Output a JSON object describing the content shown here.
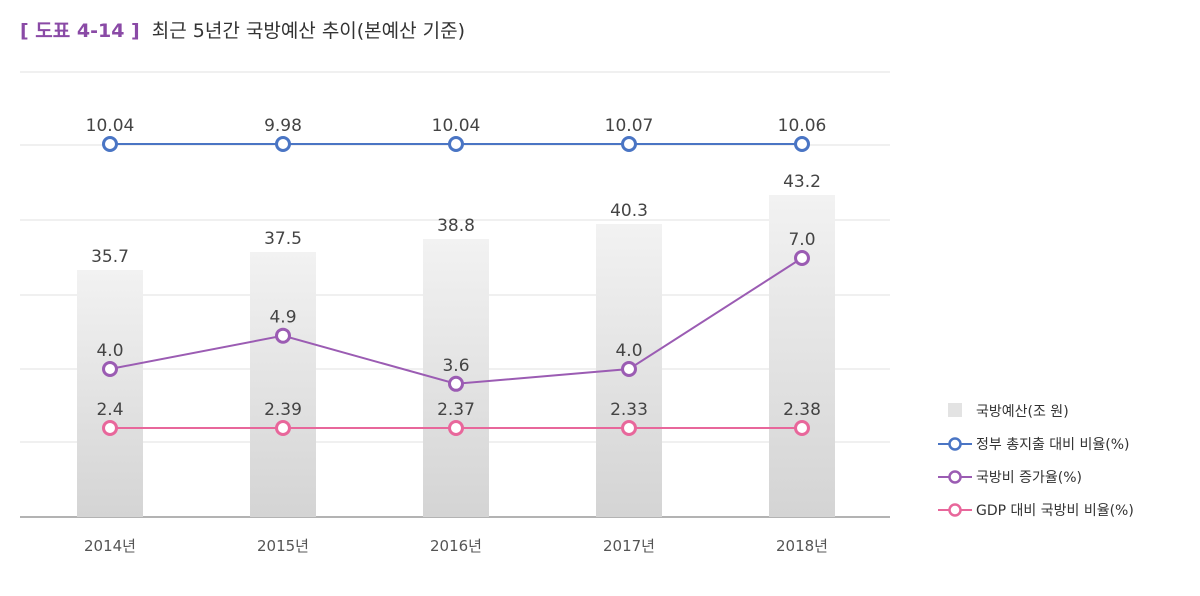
{
  "figure": {
    "label": "[ 도표 4-14 ]",
    "title": "최근 5년간 국방예산 추이(본예산 기준)"
  },
  "chart_data": {
    "type": "bar",
    "categories": [
      "2014년",
      "2015년",
      "2016년",
      "2017년",
      "2018년"
    ],
    "series": [
      {
        "name": "국방예산(조 원)",
        "kind": "bar",
        "values": [
          35.7,
          37.5,
          38.8,
          40.3,
          43.2
        ],
        "labels": [
          "35.7",
          "37.5",
          "38.8",
          "40.3",
          "43.2"
        ],
        "color": "#e3e3e3"
      },
      {
        "name": "정부 총지출 대비 비율(%)",
        "kind": "line",
        "values": [
          10.04,
          9.98,
          10.04,
          10.07,
          10.06
        ],
        "labels": [
          "10.04",
          "9.98",
          "10.04",
          "10.07",
          "10.06"
        ],
        "color": "#4a75c4"
      },
      {
        "name": "국방비 증가율(%)",
        "kind": "line",
        "values": [
          4.0,
          4.9,
          3.6,
          4.0,
          7.0
        ],
        "labels": [
          "4.0",
          "4.9",
          "3.6",
          "4.0",
          "7.0"
        ],
        "color": "#9b5cb3"
      },
      {
        "name": "GDP 대비 국방비 비율(%)",
        "kind": "line",
        "values": [
          2.4,
          2.39,
          2.37,
          2.33,
          2.38
        ],
        "labels": [
          "2.4",
          "2.39",
          "2.37",
          "2.33",
          "2.38"
        ],
        "color": "#e8679b"
      }
    ],
    "grid": true,
    "legend": "bottom-right"
  }
}
